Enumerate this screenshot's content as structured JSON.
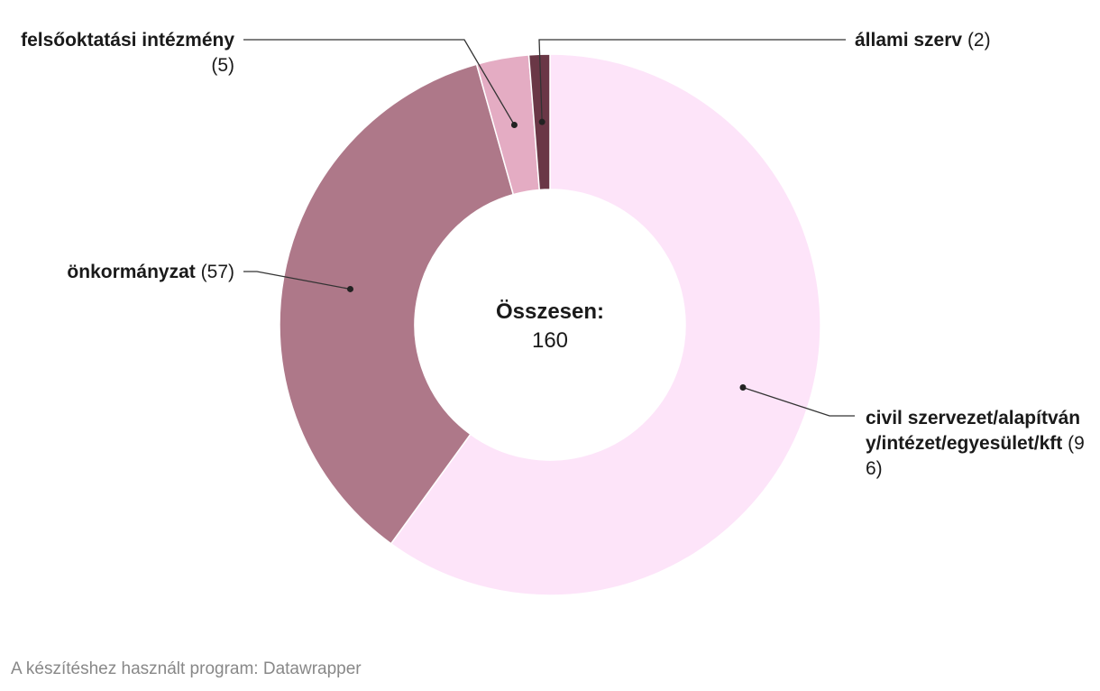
{
  "chart_data": {
    "type": "pie",
    "variant": "donut",
    "slices": [
      {
        "label": "civil szervezet/alapítvány/intézet/egyesület/kft",
        "value": 96,
        "value_text": "(96)",
        "color": "#fde4f9"
      },
      {
        "label": "önkormányzat",
        "value": 57,
        "value_text": "(57)",
        "color": "#ae7889"
      },
      {
        "label": "felsőoktatási intézmény",
        "value": 5,
        "value_text": "(5)",
        "color": "#e4acc3"
      },
      {
        "label": "állami szerv",
        "value": 2,
        "value_text": "(2)",
        "color": "#6a3746"
      }
    ],
    "center": {
      "title": "Összesen:",
      "value": "160"
    }
  },
  "footer": "A készítéshez használt program: Datawrapper"
}
